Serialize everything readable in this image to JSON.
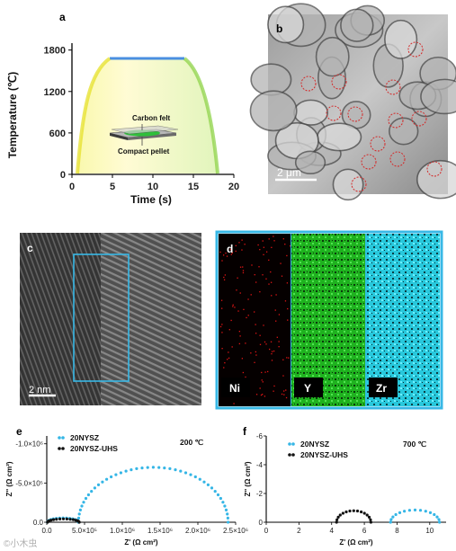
{
  "figure": {
    "panel_labels": [
      "a",
      "b",
      "c",
      "d",
      "e",
      "f"
    ],
    "watermark": "©小木虫"
  },
  "panel_a": {
    "ylabel": "Temperature (℃)",
    "xlabel": "Time (s)",
    "x_ticks": [
      "0",
      "5",
      "10",
      "15",
      "20"
    ],
    "y_ticks": [
      "0",
      "600",
      "1200",
      "1800"
    ],
    "label_top": "Carbon felt",
    "label_bottom": "Compact pellet",
    "chart_data": {
      "type": "line",
      "x": [
        0,
        1,
        2,
        3,
        4,
        5,
        14.5,
        15.5,
        16.5,
        17.5,
        18.5
      ],
      "y": [
        0,
        700,
        1200,
        1550,
        1720,
        1750,
        1750,
        1650,
        1300,
        750,
        0
      ],
      "xlim": [
        0,
        20
      ],
      "ylim": [
        0,
        1900
      ]
    }
  },
  "panel_b": {
    "scale_text": "2 μm"
  },
  "panel_c": {
    "scale_text": "2 nm"
  },
  "panel_d": {
    "maps": [
      "Ni",
      "Y",
      "Zr"
    ],
    "colors": [
      "#e01515",
      "#1ec71e",
      "#23d3e6"
    ]
  },
  "panel_e": {
    "ylabel": "Z'' (Ω cm²)",
    "xlabel": "Z' (Ω cm²)",
    "temperature": "200 ℃",
    "legend": [
      "20NYSZ",
      "20NYSZ-UHS"
    ],
    "x_ticks": [
      "0.0",
      "5.0×10⁵",
      "1.0×10⁶",
      "1.5×10⁶",
      "2.0×10⁶",
      "2.5×10⁶"
    ],
    "y_ticks": [
      "0.0",
      "-5.0×10⁵",
      "-1.0×10⁶"
    ],
    "chart_data": {
      "type": "scatter",
      "xlim": [
        0,
        2500000
      ],
      "ylim": [
        0,
        -1100000
      ],
      "series": [
        {
          "name": "20NYSZ",
          "color": "#35b6e6",
          "arcs": [
            {
              "x0": 10000,
              "x1": 420000,
              "ymax": 55000
            },
            {
              "x0": 420000,
              "x1": 2400000,
              "ymax": 700000
            }
          ]
        },
        {
          "name": "20NYSZ-UHS",
          "color": "#111111",
          "arcs": [
            {
              "x0": 10000,
              "x1": 430000,
              "ymax": 42000
            }
          ]
        }
      ]
    }
  },
  "panel_f": {
    "ylabel": "Z'' (Ω cm²)",
    "xlabel": "Z' (Ω cm²)",
    "temperature": "700 ℃",
    "legend": [
      "20NYSZ",
      "20NYSZ-UHS"
    ],
    "x_ticks": [
      "0",
      "2",
      "4",
      "6",
      "8",
      "10"
    ],
    "y_ticks": [
      "0",
      "-2",
      "-4",
      "-6"
    ],
    "chart_data": {
      "type": "scatter",
      "xlim": [
        0,
        11
      ],
      "ylim": [
        0,
        -6
      ],
      "series": [
        {
          "name": "20NYSZ",
          "color": "#35b6e6",
          "arcs": [
            {
              "x0": 7.6,
              "x1": 10.6,
              "ymax": 0.85
            }
          ]
        },
        {
          "name": "20NYSZ-UHS",
          "color": "#111111",
          "arcs": [
            {
              "x0": 4.3,
              "x1": 6.4,
              "ymax": 0.8
            }
          ]
        }
      ]
    }
  }
}
